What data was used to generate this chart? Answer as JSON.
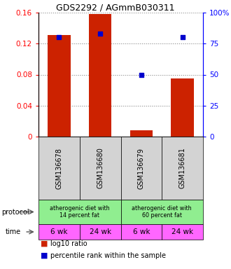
{
  "title": "GDS2292 / AGmmB030311",
  "samples": [
    "GSM136678",
    "GSM136680",
    "GSM136679",
    "GSM136681"
  ],
  "log10_ratio": [
    0.131,
    0.158,
    0.008,
    0.075
  ],
  "percentile_rank": [
    0.128,
    0.133,
    0.08,
    0.128
  ],
  "ylim_left": [
    0,
    0.16
  ],
  "ylim_right": [
    0,
    100
  ],
  "yticks_left": [
    0,
    0.04,
    0.08,
    0.12,
    0.16
  ],
  "yticks_right": [
    0,
    25,
    50,
    75,
    100
  ],
  "ytick_labels_left": [
    "0",
    "0.04",
    "0.08",
    "0.12",
    "0.16"
  ],
  "ytick_labels_right": [
    "0",
    "25",
    "50",
    "75",
    "100%"
  ],
  "protocol_labels": [
    "atherogenic diet with\n14 percent fat",
    "atherogenic diet with\n60 percent fat"
  ],
  "time_labels": [
    "6 wk",
    "24 wk",
    "6 wk",
    "24 wk"
  ],
  "time_color": "#ff66ff",
  "protocol_color": "#90ee90",
  "bar_color": "#cc2200",
  "dot_color": "#0000cc",
  "bg_color": "#d3d3d3",
  "bar_width": 0.55,
  "grid_color": "#888888",
  "legend_red_label": "log10 ratio",
  "legend_blue_label": "percentile rank within the sample",
  "protocol_row_label": "protocol",
  "time_row_label": "time"
}
